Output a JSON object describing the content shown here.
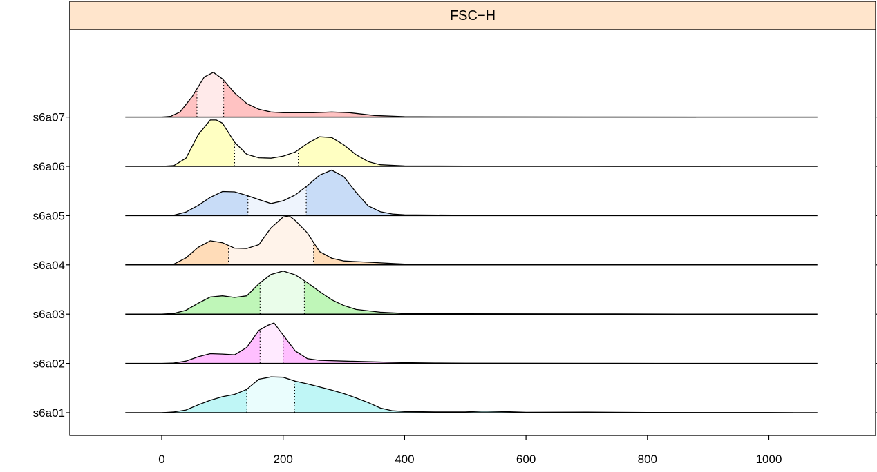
{
  "chart_data": {
    "type": "area",
    "panel_title": "FSC−H",
    "strip_color": "#ffe5cc",
    "xlim": [
      -150,
      1170
    ],
    "x_ticks": [
      0,
      200,
      400,
      600,
      800,
      1000
    ],
    "x_tick_labels": [
      "0",
      "200",
      "400",
      "600",
      "800",
      "1000"
    ],
    "baseline_range": [
      -60,
      1080
    ],
    "categories": [
      "s6a01",
      "s6a02",
      "s6a03",
      "s6a04",
      "s6a05",
      "s6a06",
      "s6a07"
    ],
    "series": [
      {
        "name": "s6a01",
        "color": "#bff6f6",
        "light": "#eafdfd",
        "quantiles": [
          140,
          219
        ],
        "x": [
          0,
          20,
          40,
          60,
          80,
          100,
          120,
          140,
          160,
          180,
          200,
          220,
          240,
          260,
          280,
          300,
          320,
          340,
          360,
          380,
          400,
          450,
          500,
          530,
          560,
          600,
          700,
          800,
          900,
          1000,
          1040
        ],
        "y": [
          0,
          0.02,
          0.07,
          0.2,
          0.32,
          0.41,
          0.47,
          0.6,
          0.86,
          0.92,
          0.91,
          0.81,
          0.74,
          0.66,
          0.58,
          0.49,
          0.38,
          0.26,
          0.12,
          0.05,
          0.03,
          0.02,
          0.02,
          0.04,
          0.03,
          0.01,
          0.015,
          0.005,
          0.004,
          0.003,
          0
        ]
      },
      {
        "name": "s6a02",
        "color": "#ffbfff",
        "light": "#ffeaff",
        "quantiles": [
          162,
          200
        ],
        "x": [
          0,
          20,
          40,
          60,
          80,
          100,
          120,
          140,
          160,
          175,
          185,
          200,
          220,
          240,
          260,
          300,
          350,
          400,
          450,
          500,
          600,
          700,
          820
        ],
        "y": [
          0,
          0.01,
          0.06,
          0.17,
          0.25,
          0.24,
          0.22,
          0.41,
          0.85,
          0.98,
          1.04,
          0.73,
          0.32,
          0.12,
          0.08,
          0.06,
          0.04,
          0.02,
          0.01,
          0.005,
          0.003,
          0.002,
          0
        ]
      },
      {
        "name": "s6a03",
        "color": "#bff6b8",
        "light": "#eafdea",
        "quantiles": [
          162,
          235
        ],
        "x": [
          0,
          20,
          40,
          60,
          80,
          100,
          120,
          140,
          160,
          180,
          200,
          220,
          240,
          260,
          280,
          300,
          320,
          360,
          400,
          500,
          700,
          850,
          980
        ],
        "y": [
          0,
          0.02,
          0.1,
          0.28,
          0.44,
          0.47,
          0.43,
          0.47,
          0.78,
          1.02,
          1.11,
          1.01,
          0.81,
          0.58,
          0.37,
          0.22,
          0.12,
          0.05,
          0.02,
          0.01,
          0.005,
          0.002,
          0
        ]
      },
      {
        "name": "s6a04",
        "color": "#ffdcb8",
        "light": "#fff3ea",
        "quantiles": [
          110,
          250
        ],
        "x": [
          0,
          20,
          40,
          60,
          80,
          100,
          120,
          140,
          160,
          180,
          200,
          210,
          220,
          240,
          260,
          280,
          300,
          350,
          400,
          500,
          700,
          900,
          1050
        ],
        "y": [
          0,
          0.02,
          0.18,
          0.45,
          0.62,
          0.57,
          0.43,
          0.42,
          0.52,
          0.95,
          1.23,
          1.26,
          1.14,
          0.82,
          0.34,
          0.17,
          0.1,
          0.06,
          0.02,
          0.01,
          0.005,
          0.002,
          0
        ]
      },
      {
        "name": "s6a05",
        "color": "#c8dcf7",
        "light": "#eef4fd",
        "quantiles": [
          142,
          238
        ],
        "x": [
          0,
          20,
          40,
          60,
          80,
          100,
          120,
          140,
          160,
          180,
          200,
          220,
          240,
          260,
          280,
          300,
          320,
          340,
          360,
          380,
          400,
          500,
          700,
          900,
          1010
        ],
        "y": [
          0,
          0.01,
          0.09,
          0.26,
          0.47,
          0.62,
          0.61,
          0.52,
          0.41,
          0.31,
          0.38,
          0.53,
          0.77,
          1.04,
          1.17,
          1.0,
          0.6,
          0.25,
          0.1,
          0.04,
          0.02,
          0.01,
          0.005,
          0.002,
          0
        ]
      },
      {
        "name": "s6a06",
        "color": "#ffffc2",
        "light": "#ffffea",
        "quantiles": [
          120,
          225
        ],
        "x": [
          0,
          20,
          40,
          60,
          80,
          90,
          100,
          120,
          140,
          160,
          180,
          200,
          220,
          240,
          260,
          280,
          300,
          320,
          340,
          360,
          400,
          500,
          700,
          920
        ],
        "y": [
          0,
          0.02,
          0.21,
          0.81,
          1.19,
          1.19,
          1.11,
          0.62,
          0.31,
          0.22,
          0.21,
          0.26,
          0.37,
          0.59,
          0.76,
          0.74,
          0.55,
          0.3,
          0.12,
          0.04,
          0.01,
          0.005,
          0.002,
          0
        ]
      },
      {
        "name": "s6a07",
        "color": "#ffc2c2",
        "light": "#ffeaea",
        "quantiles": [
          58,
          102
        ],
        "x": [
          0,
          15,
          30,
          50,
          70,
          85,
          100,
          120,
          140,
          160,
          180,
          200,
          250,
          280,
          310,
          350,
          400,
          450,
          600,
          700,
          880
        ],
        "y": [
          0,
          0.02,
          0.13,
          0.52,
          1.03,
          1.15,
          0.98,
          0.62,
          0.35,
          0.2,
          0.13,
          0.11,
          0.11,
          0.13,
          0.11,
          0.04,
          0.01,
          0.005,
          0.003,
          0.002,
          0
        ]
      }
    ]
  }
}
